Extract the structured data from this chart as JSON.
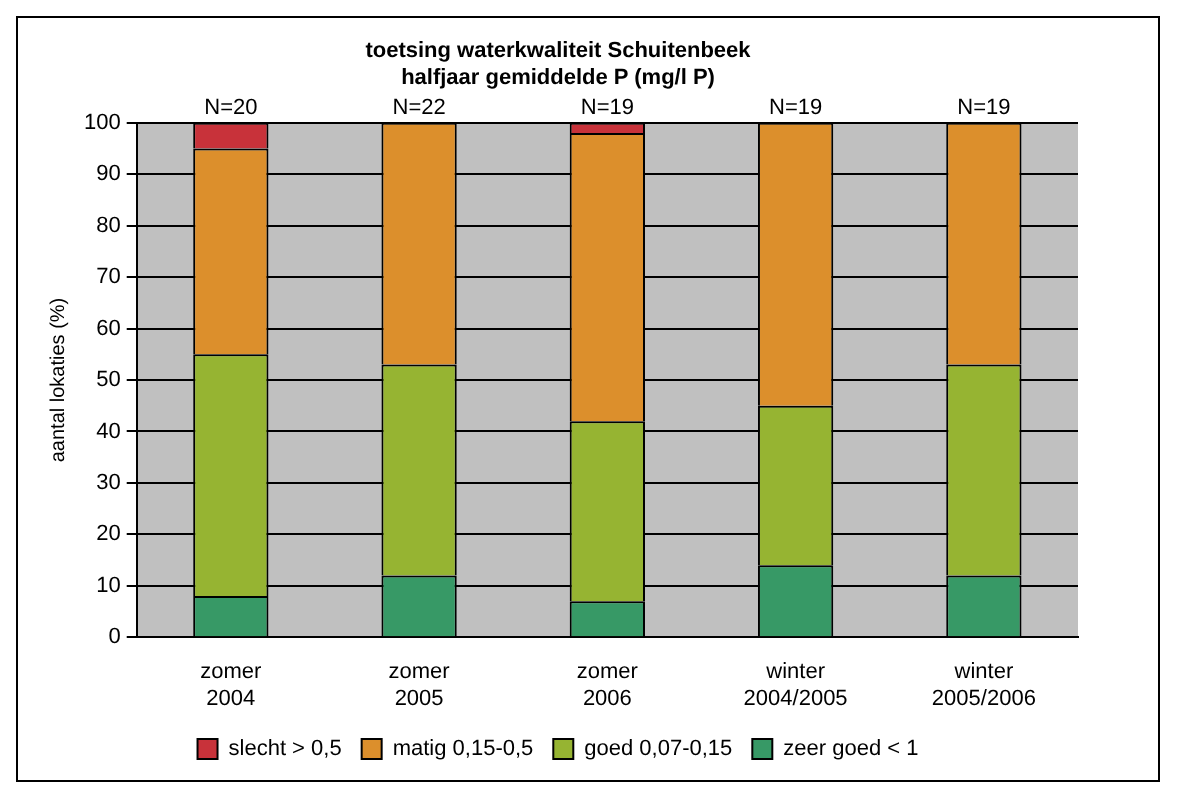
{
  "chart_data": {
    "type": "bar",
    "title": "toetsing waterkwaliteit Schuitenbeek",
    "subtitle": "halfjaar gemiddelde P (mg/l P)",
    "ylabel": "aantal lokaties (%)",
    "categories": [
      "zomer 2004",
      "zomer 2005",
      "zomer 2006",
      "winter 2004/2005",
      "winter 2005/2006"
    ],
    "stacked": true,
    "ylim": [
      0,
      100
    ],
    "yticks": [
      0,
      10,
      20,
      30,
      40,
      50,
      60,
      70,
      80,
      90,
      100
    ],
    "grid": "y",
    "legend": "bottom",
    "annotations": [
      {
        "text": "N=20",
        "x": "zomer 2004",
        "y": 100
      },
      {
        "text": "N=22",
        "x": "zomer 2005",
        "y": 100
      },
      {
        "text": "N=19",
        "x": "zomer 2006",
        "y": 100
      },
      {
        "text": "N=19",
        "x": "winter 2004/2005",
        "y": 100
      },
      {
        "text": "N=19",
        "x": "winter 2005/2006",
        "y": 100
      }
    ],
    "series": [
      {
        "name": "zeer goed < 1",
        "color": "#379966",
        "values": [
          8,
          12,
          7,
          14,
          12
        ]
      },
      {
        "name": "goed 0,07-0,15",
        "color": "#96b432",
        "values": [
          47,
          41,
          35,
          31,
          41
        ]
      },
      {
        "name": "matig 0,15-0,5",
        "color": "#dc8f2c",
        "values": [
          40,
          47,
          56,
          55,
          47
        ]
      },
      {
        "name": "slecht > 0,5",
        "color": "#c8323a",
        "values": [
          5,
          0,
          2,
          0,
          0
        ]
      }
    ]
  }
}
